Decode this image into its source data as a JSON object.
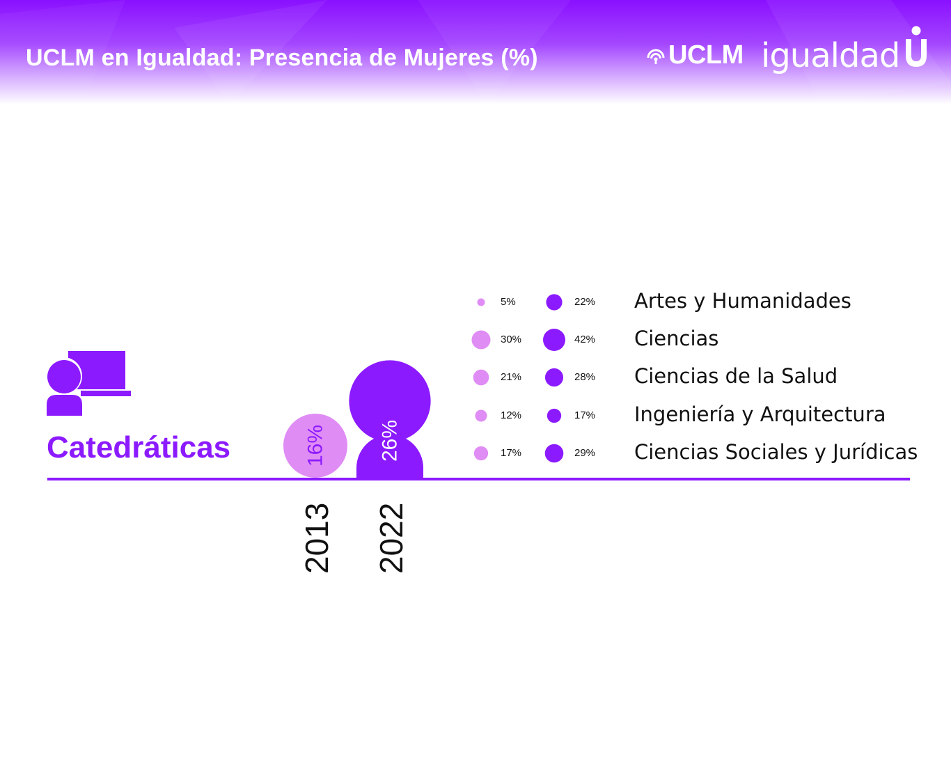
{
  "header": {
    "title": "UCLM en Igualdad: Presencia de Mujeres (%)",
    "logo_brand": "UCLM",
    "logo_sub": "igualdad"
  },
  "colors": {
    "accent": "#8c1aff",
    "light": "#e08cf5",
    "header_top": "#8a10ff",
    "text": "#111111"
  },
  "icons": {
    "header_signal": "wifi-signal-icon",
    "header_mark": "u-mark-icon",
    "category": "professor-at-board-icon"
  },
  "chart_data": {
    "type": "bubble",
    "category": "Catedráticas",
    "years": [
      "2013",
      "2022"
    ],
    "overall": [
      {
        "year": "2013",
        "value": 16,
        "label": "16%",
        "color": "#e08cf5"
      },
      {
        "year": "2022",
        "value": 26,
        "label": "26%",
        "color": "#8c1aff"
      }
    ],
    "fields": [
      {
        "name": "Artes y Humanidades",
        "v2013": 5,
        "l2013": "5%",
        "v2022": 22,
        "l2022": "22%"
      },
      {
        "name": "Ciencias",
        "v2013": 30,
        "l2013": "30%",
        "v2022": 42,
        "l2022": "42%"
      },
      {
        "name": "Ciencias de la Salud",
        "v2013": 21,
        "l2013": "21%",
        "v2022": 28,
        "l2022": "28%"
      },
      {
        "name": "Ingeniería y Arquitectura",
        "v2013": 12,
        "l2013": "12%",
        "v2022": 17,
        "l2022": "17%"
      },
      {
        "name": "Ciencias Sociales y Jurídicas",
        "v2013": 17,
        "l2013": "17%",
        "v2022": 29,
        "l2022": "29%"
      }
    ]
  }
}
